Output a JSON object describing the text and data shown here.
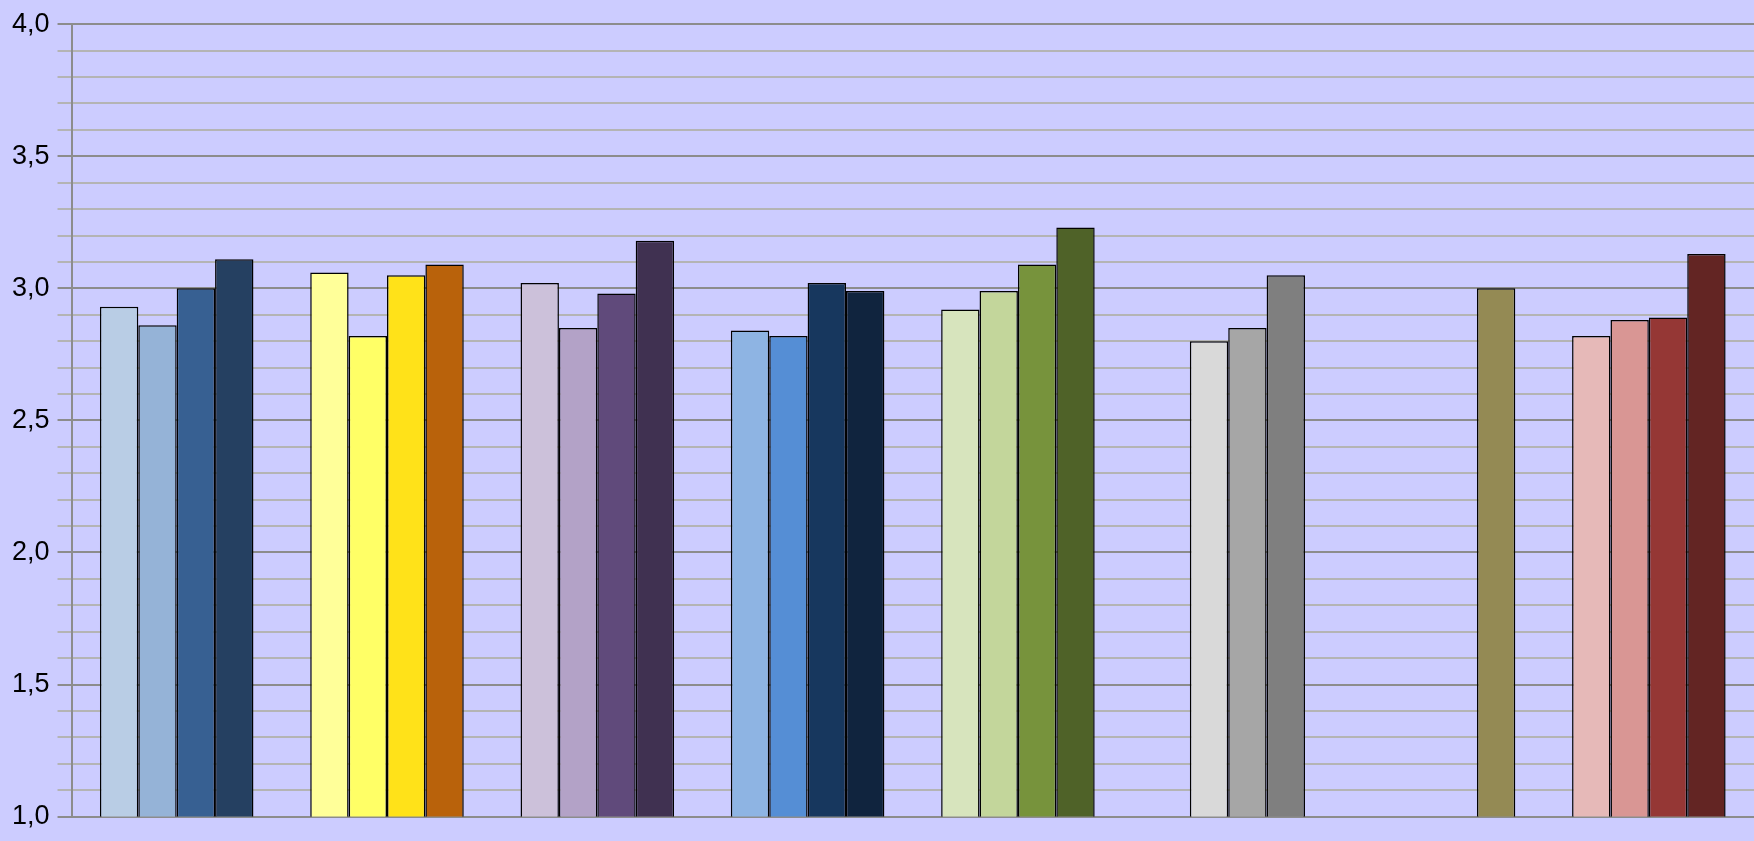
{
  "chart_data": {
    "type": "bar",
    "categories": [
      null,
      null,
      null,
      null,
      null,
      null,
      null,
      null
    ],
    "series": [
      {
        "values": [
          2.93,
          3.06,
          3.02,
          2.84,
          2.92,
          null,
          null,
          2.82
        ],
        "colors": [
          "#b9cde5",
          "#ffff99",
          "#ccc1da",
          "#8eb4e3",
          "#d7e4bd",
          null,
          null,
          "#e6b9b8"
        ]
      },
      {
        "values": [
          2.86,
          2.82,
          2.85,
          2.82,
          2.99,
          2.8,
          null,
          2.88
        ],
        "colors": [
          "#95b3d7",
          "#ffff66",
          "#b3a2c7",
          "#558ed5",
          "#c3d69b",
          "#d9d9d9",
          null,
          "#d99694"
        ]
      },
      {
        "values": [
          3.0,
          3.05,
          2.98,
          3.02,
          3.09,
          2.85,
          null,
          2.89
        ],
        "colors": [
          "#376092",
          "#ffe219",
          "#604a7b",
          "#17375e",
          "#77933c",
          "#a6a6a6",
          null,
          "#953735"
        ]
      },
      {
        "values": [
          3.11,
          3.09,
          3.18,
          2.99,
          3.23,
          3.05,
          3.0,
          3.13
        ],
        "colors": [
          "#254061",
          "#b9620b",
          "#403151",
          "#10243e",
          "#4f6228",
          "#7f7f7f",
          "#948a54",
          "#632523"
        ]
      }
    ],
    "ylim": [
      1,
      4
    ],
    "yticks": [
      {
        "value": 1,
        "label": "1,0"
      },
      {
        "value": 1.1,
        "label": null
      },
      {
        "value": 1.2,
        "label": null
      },
      {
        "value": 1.3,
        "label": null
      },
      {
        "value": 1.4,
        "label": null
      },
      {
        "value": 1.5,
        "label": "1,5"
      },
      {
        "value": 1.6,
        "label": null
      },
      {
        "value": 1.7,
        "label": null
      },
      {
        "value": 1.8,
        "label": null
      },
      {
        "value": 1.9,
        "label": null
      },
      {
        "value": 2,
        "label": "2,0"
      },
      {
        "value": 2.1,
        "label": null
      },
      {
        "value": 2.2,
        "label": null
      },
      {
        "value": 2.3,
        "label": null
      },
      {
        "value": 2.4,
        "label": null
      },
      {
        "value": 2.5,
        "label": "2,5"
      },
      {
        "value": 2.6,
        "label": null
      },
      {
        "value": 2.7,
        "label": null
      },
      {
        "value": 2.8,
        "label": null
      },
      {
        "value": 2.9,
        "label": null
      },
      {
        "value": 3,
        "label": "3,0"
      },
      {
        "value": 3.1,
        "label": null
      },
      {
        "value": 3.2,
        "label": null
      },
      {
        "value": 3.3,
        "label": null
      },
      {
        "value": 3.4,
        "label": null
      },
      {
        "value": 3.5,
        "label": "3,5"
      },
      {
        "value": 3.6,
        "label": null
      },
      {
        "value": 3.7,
        "label": null
      },
      {
        "value": 3.8,
        "label": null
      },
      {
        "value": 3.9,
        "label": null
      },
      {
        "value": 4,
        "label": "4,0"
      }
    ],
    "grid": "y",
    "legend": false
  }
}
